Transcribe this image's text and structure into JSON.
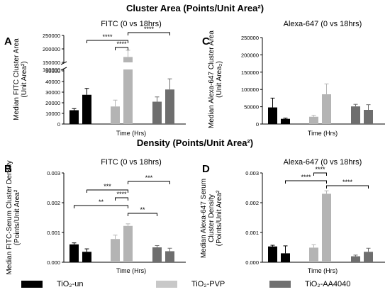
{
  "titles": {
    "top": "Cluster Area (Points/Unit Area²)",
    "bottom": "Density (Points/Unit Area²)"
  },
  "colors": {
    "TiO2-un": "#000000",
    "TiO2-PVP": "#b4b4b4",
    "TiO2-AA4040": "#6e6e6e"
  },
  "legend": [
    {
      "label": "TiO₂-un",
      "color": "#000000"
    },
    {
      "label": "TiO₂-PVP",
      "color": "#c8c8c8"
    },
    {
      "label": "TiO₂-AA4040",
      "color": "#707070"
    }
  ],
  "chart_data": [
    {
      "panel": "A",
      "type": "bar",
      "title": "FITC (0 vs 18hrs)",
      "xlabel": "Time (Hrs)",
      "ylabel": [
        "Median FITC Cluster Area",
        "(Unit Area²)"
      ],
      "broken_axis": true,
      "ylim_lower": [
        0,
        100000
      ],
      "yticks_lower": [
        "0",
        "10000",
        "20000",
        "30000",
        "40000",
        "50000",
        "100000"
      ],
      "ylim_upper": [
        150000,
        250000
      ],
      "yticks_upper": [
        "150000",
        "200000",
        "250000"
      ],
      "series": [
        {
          "group": "TiO2-un",
          "values": [
            13000,
            27500
          ],
          "errors": [
            1500,
            6000
          ]
        },
        {
          "group": "TiO2-PVP",
          "values": [
            16500,
            170000
          ],
          "errors": [
            6000,
            25000
          ]
        },
        {
          "group": "TiO2-AA4040",
          "values": [
            21000,
            32500
          ],
          "errors": [
            4500,
            10000
          ]
        }
      ],
      "significance": [
        "****",
        "****",
        "****"
      ]
    },
    {
      "panel": "C",
      "type": "bar",
      "title": "Alexa-647 (0 vs 18hrs)",
      "xlabel": "Time (Hrs)",
      "ylabel": [
        "Median Alexa-647 Cluster Area",
        "(Unit Area₂)"
      ],
      "ylim": [
        0,
        250000
      ],
      "yticks": [
        "0",
        "50000",
        "100000",
        "150000",
        "200000",
        "250000"
      ],
      "series": [
        {
          "group": "TiO2-un",
          "values": [
            48000,
            15000
          ],
          "errors": [
            27000,
            2000
          ]
        },
        {
          "group": "TiO2-PVP",
          "values": [
            21000,
            86000
          ],
          "errors": [
            4000,
            30000
          ]
        },
        {
          "group": "TiO2-AA4040",
          "values": [
            51000,
            41000
          ],
          "errors": [
            6000,
            15000
          ]
        }
      ]
    },
    {
      "panel": "B",
      "type": "bar",
      "title": "FITC (0 vs 18hrs)",
      "xlabel": "Time (Hrs)",
      "ylabel": [
        "Median FITC-Serum Cluster Density",
        "(Points/Unit Area²"
      ],
      "ylim": [
        0,
        0.003
      ],
      "yticks": [
        "0.000",
        "0.001",
        "0.002",
        "0.003"
      ],
      "series": [
        {
          "group": "TiO2-un",
          "values": [
            0.0006,
            0.00035
          ],
          "errors": [
            5e-05,
            0.0001
          ]
        },
        {
          "group": "TiO2-PVP",
          "values": [
            0.00078,
            0.00122
          ],
          "errors": [
            0.00013,
            7e-05
          ]
        },
        {
          "group": "TiO2-AA4040",
          "values": [
            0.0005,
            0.00037
          ],
          "errors": [
            6e-05,
            0.0001
          ]
        }
      ],
      "significance": [
        "***",
        "***",
        "**",
        "****",
        "**"
      ]
    },
    {
      "panel": "D",
      "type": "bar",
      "title": "Alexa-647 (0 vs 18hrs)",
      "xlabel": "Time (Hrs)",
      "ylabel": [
        "Median Alexa-647 Serum",
        "Cluster Density",
        "(Points/Unit Area²"
      ],
      "ylim": [
        0,
        0.003
      ],
      "yticks": [
        "0.000",
        "0.001",
        "0.002",
        "0.003"
      ],
      "series": [
        {
          "group": "TiO2-un",
          "values": [
            0.00053,
            0.0003
          ],
          "errors": [
            4e-05,
            0.00025
          ]
        },
        {
          "group": "TiO2-PVP",
          "values": [
            0.00049,
            0.0023
          ],
          "errors": [
            0.0001,
            0.0001
          ]
        },
        {
          "group": "TiO2-AA4040",
          "values": [
            0.0002,
            0.00035
          ],
          "errors": [
            4e-05,
            0.00012
          ]
        }
      ],
      "significance": [
        "****",
        "****",
        "****"
      ]
    }
  ]
}
